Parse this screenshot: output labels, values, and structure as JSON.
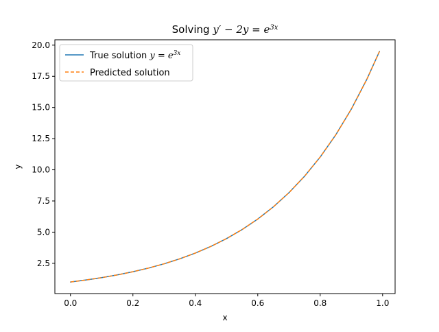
{
  "chart_data": {
    "type": "line",
    "title": {
      "prefix": "Solving ",
      "math": "y′ − 2y = e",
      "exp": "3x"
    },
    "xlabel": "x",
    "ylabel": "y",
    "xlim": [
      -0.05,
      1.04
    ],
    "ylim": [
      0.07,
      20.43
    ],
    "xticks": [
      0.0,
      0.2,
      0.4,
      0.6,
      0.8,
      1.0
    ],
    "xtick_labels": [
      "0.0",
      "0.2",
      "0.4",
      "0.6",
      "0.8",
      "1.0"
    ],
    "yticks": [
      2.5,
      5.0,
      7.5,
      10.0,
      12.5,
      15.0,
      17.5,
      20.0
    ],
    "ytick_labels": [
      "2.5",
      "5.0",
      "7.5",
      "10.0",
      "12.5",
      "15.0",
      "17.5",
      "20.0"
    ],
    "grid": false,
    "legend": {
      "position": "top-left",
      "entries": [
        {
          "series_index": 0,
          "text_prefix": "True solution ",
          "math": "y = e",
          "exp": "3x"
        },
        {
          "series_index": 1,
          "text_prefix": "Predicted solution",
          "math": "",
          "exp": ""
        }
      ]
    },
    "x": [
      0.0,
      0.05,
      0.1,
      0.15,
      0.2,
      0.25,
      0.3,
      0.35,
      0.4,
      0.45,
      0.5,
      0.55,
      0.6,
      0.65,
      0.7,
      0.75,
      0.8,
      0.85,
      0.9,
      0.95,
      0.99
    ],
    "series": [
      {
        "name": "True solution y = e^{3x}",
        "color": "#1f77b4",
        "style": "solid",
        "values": [
          1.0,
          1.162,
          1.35,
          1.568,
          1.822,
          2.117,
          2.46,
          2.858,
          3.32,
          3.857,
          4.482,
          5.207,
          6.05,
          7.029,
          8.166,
          9.488,
          11.023,
          12.807,
          14.88,
          17.288,
          19.5
        ]
      },
      {
        "name": "Predicted solution",
        "color": "#ff7f0e",
        "style": "dashed",
        "values": [
          1.0,
          1.162,
          1.35,
          1.568,
          1.822,
          2.117,
          2.46,
          2.858,
          3.32,
          3.857,
          4.482,
          5.207,
          6.05,
          7.029,
          8.166,
          9.488,
          11.023,
          12.807,
          14.88,
          17.288,
          19.5
        ]
      }
    ]
  }
}
